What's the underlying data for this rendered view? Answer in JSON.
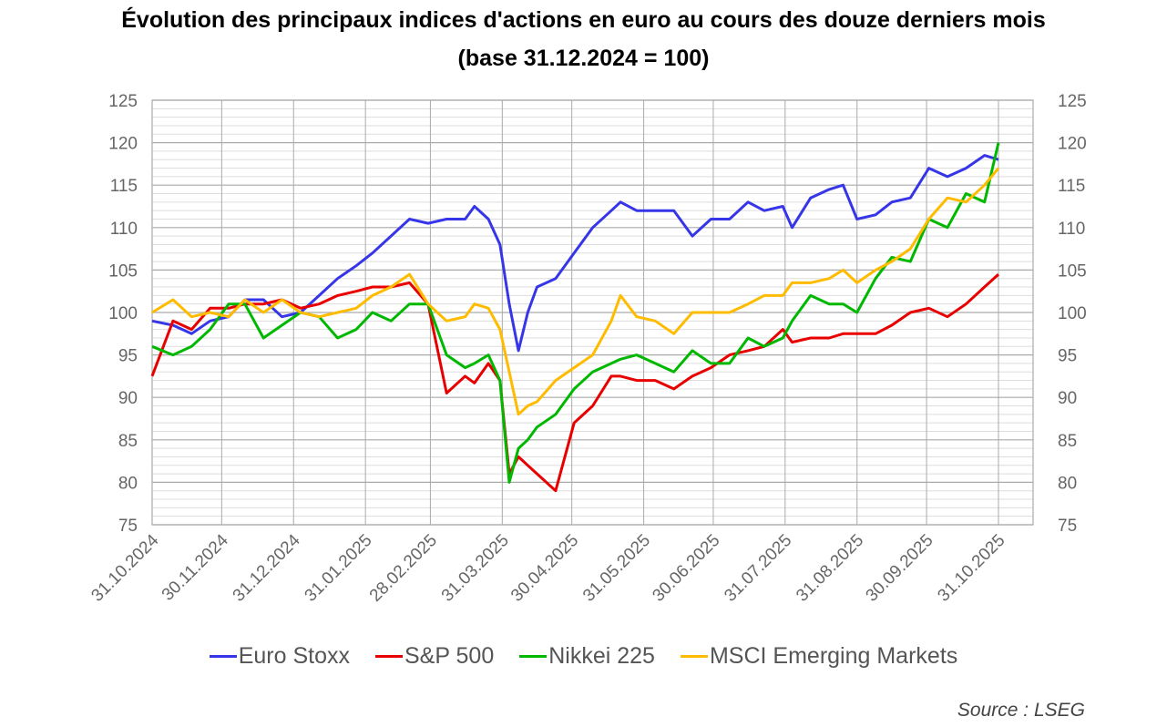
{
  "chart_data": {
    "type": "line",
    "title": "Évolution des principaux indices d'actions en euro au cours des douze derniers mois",
    "subtitle": "(base 31.12.2024 = 100)",
    "source": "Source : LSEG",
    "xlabel": "",
    "ylabel": "",
    "ylim": [
      75,
      125
    ],
    "y_ticks": [
      "75",
      "80",
      "85",
      "90",
      "95",
      "100",
      "105",
      "110",
      "115",
      "120",
      "125"
    ],
    "x_ticks": [
      "31.10.2024",
      "30.11.2024",
      "31.12.2024",
      "31.01.2025",
      "28.02.2025",
      "31.03.2025",
      "30.04.2025",
      "31.05.2025",
      "30.06.2025",
      "31.07.2025",
      "31.08.2025",
      "30.09.2025",
      "31.10.2025"
    ],
    "x_tick_days": [
      0,
      30,
      61,
      92,
      120,
      151,
      181,
      212,
      242,
      273,
      304,
      334,
      365
    ],
    "x_days": [
      0,
      9,
      17,
      25,
      33,
      40,
      48,
      56,
      64,
      72,
      80,
      88,
      95,
      103,
      111,
      119,
      127,
      135,
      139,
      145,
      150,
      154,
      158,
      162,
      166,
      174,
      182,
      190,
      198,
      202,
      209,
      217,
      225,
      233,
      241,
      249,
      257,
      264,
      272,
      276,
      284,
      292,
      298,
      304,
      312,
      319,
      327,
      335,
      343,
      351,
      359,
      365
    ],
    "grid": true,
    "legend_position": "bottom",
    "series": [
      {
        "name": "Euro Stoxx",
        "color": "#3636e8",
        "values": [
          99,
          98.5,
          97.5,
          99,
          99.5,
          101.5,
          101.5,
          99.5,
          100,
          102,
          104,
          105.5,
          107,
          109,
          111,
          110.5,
          111,
          111,
          112.5,
          111,
          108,
          101,
          95.5,
          100,
          103,
          104,
          107,
          110,
          112,
          113,
          112,
          112,
          112,
          109,
          111,
          111,
          113,
          112,
          112.5,
          110,
          113.5,
          114.5,
          115,
          111,
          111.5,
          113,
          113.5,
          117,
          116,
          117,
          118.5,
          118
        ]
      },
      {
        "name": "S&P 500",
        "color": "#e80000",
        "values": [
          92.5,
          99,
          98,
          100.5,
          100.5,
          101,
          101,
          101.5,
          100.5,
          101,
          102,
          102.5,
          103,
          103,
          103.5,
          101,
          90.5,
          92.5,
          91.7,
          94,
          92,
          81,
          83,
          82,
          81,
          79,
          87,
          89,
          92.5,
          92.5,
          92,
          92,
          91,
          92.5,
          93.5,
          95,
          95.5,
          96,
          98,
          96.5,
          97,
          97,
          97.5,
          97.5,
          97.5,
          98.5,
          100,
          100.5,
          99.5,
          101,
          103,
          104.5
        ]
      },
      {
        "name": "Nikkei 225",
        "color": "#00b800",
        "values": [
          96,
          95,
          96,
          98,
          101,
          101,
          97,
          98.5,
          100,
          99.5,
          97,
          98,
          100,
          99,
          101,
          101,
          95,
          93.5,
          94,
          95,
          92,
          80,
          84,
          85,
          86.5,
          88,
          91,
          93,
          94,
          94.5,
          95,
          94,
          93,
          95.5,
          94,
          94,
          97,
          96,
          97,
          99,
          102,
          101,
          101,
          100,
          104,
          106.5,
          106,
          111,
          110,
          114,
          113,
          120
        ]
      },
      {
        "name": "MSCI Emerging Markets",
        "color": "#ffbb00",
        "values": [
          100,
          101.5,
          99.5,
          100,
          99.5,
          101.5,
          100,
          101.5,
          100,
          99.5,
          100,
          100.5,
          102,
          103,
          104.5,
          101,
          99,
          99.5,
          101,
          100.5,
          98,
          93,
          88,
          89,
          89.5,
          92,
          93.5,
          95,
          99,
          102,
          99.5,
          99,
          97.5,
          100,
          100,
          100,
          101,
          102,
          102,
          103.5,
          103.5,
          104,
          105,
          103.5,
          105,
          106,
          107.5,
          111,
          113.5,
          113,
          115,
          117
        ]
      }
    ]
  }
}
